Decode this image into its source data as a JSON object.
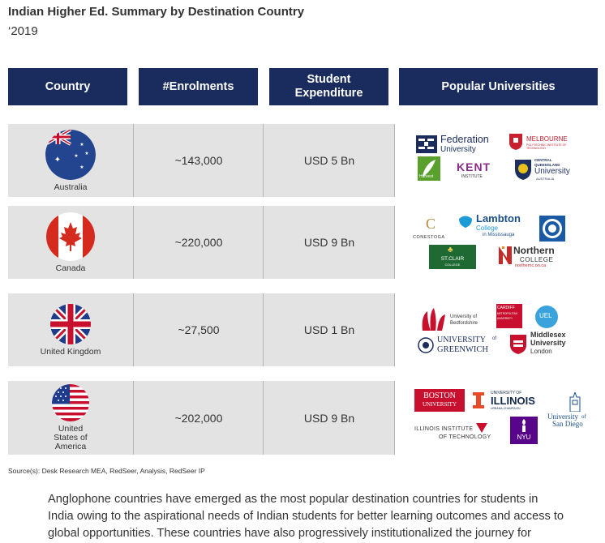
{
  "title": "Indian Higher Ed. Summary by Destination Country",
  "subtitle": "‘2019",
  "headers": {
    "country": "Country",
    "enrolments": "#Enrolments",
    "expenditure": "Student\nExpenditure",
    "universities": "Popular Universities"
  },
  "rows": [
    {
      "country": "Australia",
      "enrolments": "~143,000",
      "expenditure": "USD 5 Bn",
      "logos": {
        "federation": "Federation",
        "federation_sub": "University",
        "melbourne": "MELBOURNE",
        "melbourne_sub": "POLYTECHNIC INSTITUTE OF TECHNOLOGY",
        "harvest": "Harvest",
        "kent": "KENT",
        "kent_sub": "INSTITUTE",
        "cqu_top": "CENTRAL",
        "cqu_mid": "QUEENSLAND",
        "cqu_main": "University",
        "cqu_sub": "AUSTRALIA"
      }
    },
    {
      "country": "Canada",
      "enrolments": "~220,000",
      "expenditure": "USD 9 Bn",
      "logos": {
        "conestoga": "CONESTOGA",
        "lambton": "Lambton",
        "lambton_sub": "College",
        "lambton_loc": "in Mississauga",
        "stclair": "ST.CLAIR",
        "stclair_sub": "COLLEGE",
        "northern": "Northern",
        "northern_sub": "COLLEGE",
        "northern_url": "northernc.on.ca"
      }
    },
    {
      "country": "United Kingdom",
      "enrolments": "~27,500",
      "expenditure": "USD 1 Bn",
      "logos": {
        "bedfordshire": "University of",
        "bedfordshire_sub": "Bedfordshire",
        "cardiff_1": "CARDIFF",
        "cardiff_2": "METROPOLITAN",
        "cardiff_3": "UNIVERSITY",
        "uel": "UEL",
        "greenwich_1": "UNIVERSITY",
        "greenwich_of": "of",
        "greenwich_2": "GREENWICH",
        "middlesex_1": "Middlesex",
        "middlesex_2": "University",
        "middlesex_3": "London"
      }
    },
    {
      "country": "United States of America",
      "enrolments": "~202,000",
      "expenditure": "USD 9 Bn",
      "logos": {
        "boston_1": "BOSTON",
        "boston_2": "UNIVERSITY",
        "illinois_top": "UNIVERSITY OF",
        "illinois": "ILLINOIS",
        "illinois_sub": "URBANA-CHAMPAIGN",
        "sandiego_1": "University",
        "sandiego_of": "of",
        "sandiego_2": "San Diego",
        "iit_1": "ILLINOIS INSTITUTE",
        "iit_of": "OF TECHNOLOGY",
        "nyu": "NYU"
      }
    }
  ],
  "source": "Source(s): Desk Research MEA, RedSeer, Analysis, RedSeer IP",
  "paragraph": "Anglophone countries have emerged as the most popular destination countries for students in India owing to the aspirational needs of Indian students for better learning outcomes and access to global opportunities. These countries have also progressively institutionalized the journey for",
  "colors": {
    "header_bg": "#1a2b5e",
    "row_bg": "#e3e3e3"
  }
}
